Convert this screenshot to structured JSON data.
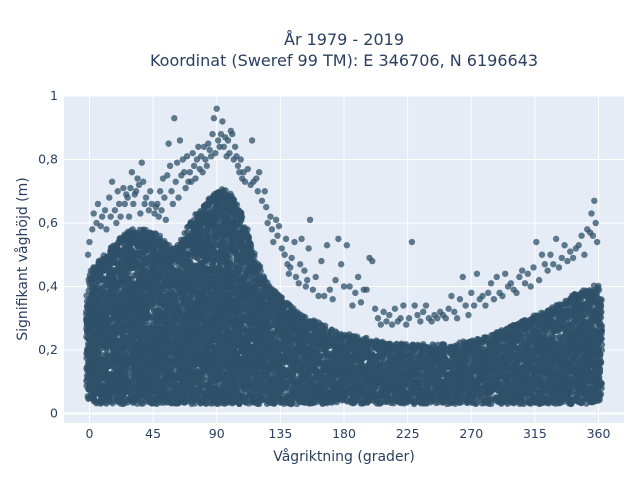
{
  "chart_data": {
    "type": "scatter",
    "title": "År 1979 - 2019",
    "subtitle": "Koordinat (Sweref 99 TM): E 346706, N 6196643",
    "xlabel": "Vågriktning (grader)",
    "ylabel": "Signifikant våghöjd (m)",
    "xlim": [
      -18,
      378
    ],
    "ylim": [
      -0.03,
      1.0
    ],
    "xticks": [
      0,
      45,
      90,
      135,
      180,
      225,
      270,
      315,
      360
    ],
    "yticks": [
      0,
      0.2,
      0.4,
      0.6,
      0.8,
      1
    ],
    "ytick_labels": [
      "0",
      "0,2",
      "0,4",
      "0,6",
      "0,8",
      "1"
    ],
    "grid": true,
    "marker_color": "#2f5068",
    "marker_opacity": 0.75,
    "series": [
      {
        "dense_band": {
          "x": [
            -2,
            0,
            5,
            10,
            15,
            20,
            25,
            30,
            35,
            40,
            45,
            50,
            55,
            60,
            65,
            70,
            75,
            80,
            85,
            90,
            95,
            100,
            105,
            110,
            115,
            120,
            125,
            130,
            135,
            140,
            145,
            150,
            155,
            160,
            165,
            170,
            175,
            180,
            185,
            190,
            195,
            200,
            205,
            210,
            215,
            220,
            225,
            230,
            235,
            240,
            245,
            250,
            255,
            260,
            265,
            270,
            275,
            280,
            285,
            290,
            295,
            300,
            305,
            310,
            315,
            320,
            325,
            330,
            335,
            340,
            345,
            350,
            355,
            360,
            362
          ],
          "y_low": [
            0.05,
            0.04,
            0.03,
            0.03,
            0.03,
            0.03,
            0.03,
            0.03,
            0.03,
            0.03,
            0.03,
            0.03,
            0.03,
            0.03,
            0.03,
            0.03,
            0.03,
            0.03,
            0.03,
            0.03,
            0.03,
            0.03,
            0.03,
            0.03,
            0.03,
            0.03,
            0.03,
            0.03,
            0.03,
            0.03,
            0.03,
            0.03,
            0.03,
            0.03,
            0.03,
            0.03,
            0.03,
            0.03,
            0.03,
            0.03,
            0.03,
            0.03,
            0.03,
            0.03,
            0.03,
            0.03,
            0.03,
            0.03,
            0.03,
            0.03,
            0.03,
            0.03,
            0.03,
            0.03,
            0.03,
            0.03,
            0.03,
            0.03,
            0.03,
            0.03,
            0.03,
            0.03,
            0.03,
            0.03,
            0.03,
            0.03,
            0.03,
            0.03,
            0.03,
            0.03,
            0.03,
            0.03,
            0.03,
            0.04,
            0.05
          ],
          "y_high": [
            0.38,
            0.44,
            0.48,
            0.5,
            0.52,
            0.55,
            0.57,
            0.58,
            0.58,
            0.58,
            0.57,
            0.56,
            0.54,
            0.52,
            0.55,
            0.6,
            0.63,
            0.65,
            0.68,
            0.7,
            0.71,
            0.69,
            0.66,
            0.6,
            0.53,
            0.47,
            0.42,
            0.39,
            0.37,
            0.35,
            0.33,
            0.31,
            0.3,
            0.29,
            0.28,
            0.27,
            0.26,
            0.25,
            0.25,
            0.24,
            0.24,
            0.23,
            0.23,
            0.22,
            0.22,
            0.22,
            0.22,
            0.22,
            0.22,
            0.22,
            0.22,
            0.22,
            0.22,
            0.22,
            0.23,
            0.23,
            0.24,
            0.24,
            0.25,
            0.26,
            0.27,
            0.28,
            0.29,
            0.3,
            0.31,
            0.32,
            0.33,
            0.34,
            0.35,
            0.37,
            0.38,
            0.39,
            0.4,
            0.41,
            0.36
          ]
        },
        "points": [
          [
            2,
            0.58
          ],
          [
            3,
            0.63
          ],
          [
            5,
            0.6
          ],
          [
            6,
            0.66
          ],
          [
            8,
            0.59
          ],
          [
            9,
            0.62
          ],
          [
            11,
            0.64
          ],
          [
            12,
            0.58
          ],
          [
            14,
            0.68
          ],
          [
            15,
            0.62
          ],
          [
            16,
            0.73
          ],
          [
            18,
            0.64
          ],
          [
            19,
            0.6
          ],
          [
            20,
            0.7
          ],
          [
            21,
            0.66
          ],
          [
            22,
            0.62
          ],
          [
            24,
            0.71
          ],
          [
            25,
            0.66
          ],
          [
            26,
            0.69
          ],
          [
            27,
            0.68
          ],
          [
            28,
            0.62
          ],
          [
            29,
            0.71
          ],
          [
            30,
            0.76
          ],
          [
            31,
            0.66
          ],
          [
            32,
            0.69
          ],
          [
            33,
            0.7
          ],
          [
            34,
            0.74
          ],
          [
            35,
            0.72
          ],
          [
            36,
            0.63
          ],
          [
            37,
            0.79
          ],
          [
            38,
            0.73
          ],
          [
            39,
            0.66
          ],
          [
            40,
            0.68
          ],
          [
            42,
            0.64
          ],
          [
            43,
            0.7
          ],
          [
            44,
            0.66
          ],
          [
            46,
            0.63
          ],
          [
            47,
            0.65
          ],
          [
            48,
            0.66
          ],
          [
            49,
            0.62
          ],
          [
            50,
            0.7
          ],
          [
            51,
            0.64
          ],
          [
            52,
            0.74
          ],
          [
            53,
            0.68
          ],
          [
            54,
            0.61
          ],
          [
            55,
            0.75
          ],
          [
            56,
            0.85
          ],
          [
            57,
            0.78
          ],
          [
            58,
            0.7
          ],
          [
            59,
            0.66
          ],
          [
            60,
            0.93
          ],
          [
            61,
            0.73
          ],
          [
            62,
            0.79
          ],
          [
            63,
            0.68
          ],
          [
            64,
            0.86
          ],
          [
            65,
            0.75
          ],
          [
            66,
            0.8
          ],
          [
            67,
            0.76
          ],
          [
            68,
            0.71
          ],
          [
            69,
            0.81
          ],
          [
            70,
            0.73
          ],
          [
            71,
            0.76
          ],
          [
            72,
            0.73
          ],
          [
            73,
            0.82
          ],
          [
            74,
            0.78
          ],
          [
            75,
            0.74
          ],
          [
            76,
            0.8
          ],
          [
            77,
            0.84
          ],
          [
            78,
            0.77
          ],
          [
            79,
            0.81
          ],
          [
            80,
            0.76
          ],
          [
            81,
            0.84
          ],
          [
            82,
            0.8
          ],
          [
            83,
            0.78
          ],
          [
            84,
            0.85
          ],
          [
            85,
            0.83
          ],
          [
            86,
            0.81
          ],
          [
            87,
            0.88
          ],
          [
            88,
            0.93
          ],
          [
            89,
            0.82
          ],
          [
            90,
            0.96
          ],
          [
            91,
            0.86
          ],
          [
            92,
            0.84
          ],
          [
            93,
            0.88
          ],
          [
            94,
            0.92
          ],
          [
            95,
            0.84
          ],
          [
            96,
            0.87
          ],
          [
            97,
            0.81
          ],
          [
            98,
            0.86
          ],
          [
            99,
            0.82
          ],
          [
            100,
            0.89
          ],
          [
            101,
            0.88
          ],
          [
            102,
            0.8
          ],
          [
            103,
            0.84
          ],
          [
            104,
            0.81
          ],
          [
            105,
            0.78
          ],
          [
            106,
            0.76
          ],
          [
            107,
            0.8
          ],
          [
            108,
            0.74
          ],
          [
            109,
            0.76
          ],
          [
            110,
            0.73
          ],
          [
            112,
            0.77
          ],
          [
            114,
            0.72
          ],
          [
            115,
            0.86
          ],
          [
            116,
            0.73
          ],
          [
            118,
            0.74
          ],
          [
            119,
            0.7
          ],
          [
            120,
            0.76
          ],
          [
            122,
            0.67
          ],
          [
            124,
            0.7
          ],
          [
            125,
            0.65
          ],
          [
            126,
            0.6
          ],
          [
            128,
            0.62
          ],
          [
            129,
            0.58
          ],
          [
            130,
            0.54
          ],
          [
            132,
            0.61
          ],
          [
            133,
            0.56
          ],
          [
            134,
            0.59
          ],
          [
            136,
            0.52
          ],
          [
            138,
            0.5
          ],
          [
            139,
            0.55
          ],
          [
            140,
            0.47
          ],
          [
            141,
            0.44
          ],
          [
            142,
            0.46
          ],
          [
            143,
            0.49
          ],
          [
            145,
            0.54
          ],
          [
            146,
            0.43
          ],
          [
            148,
            0.41
          ],
          [
            149,
            0.47
          ],
          [
            150,
            0.55
          ],
          [
            152,
            0.45
          ],
          [
            153,
            0.4
          ],
          [
            154,
            0.42
          ],
          [
            155,
            0.52
          ],
          [
            156,
            0.61
          ],
          [
            158,
            0.39
          ],
          [
            160,
            0.43
          ],
          [
            162,
            0.37
          ],
          [
            164,
            0.48
          ],
          [
            166,
            0.37
          ],
          [
            168,
            0.53
          ],
          [
            170,
            0.39
          ],
          [
            172,
            0.36
          ],
          [
            174,
            0.42
          ],
          [
            176,
            0.55
          ],
          [
            178,
            0.47
          ],
          [
            180,
            0.4
          ],
          [
            182,
            0.53
          ],
          [
            184,
            0.4
          ],
          [
            186,
            0.34
          ],
          [
            188,
            0.38
          ],
          [
            190,
            0.43
          ],
          [
            192,
            0.35
          ],
          [
            194,
            0.39
          ],
          [
            196,
            0.39
          ],
          [
            198,
            0.49
          ],
          [
            200,
            0.48
          ],
          [
            202,
            0.33
          ],
          [
            204,
            0.3
          ],
          [
            206,
            0.28
          ],
          [
            208,
            0.32
          ],
          [
            210,
            0.29
          ],
          [
            212,
            0.31
          ],
          [
            214,
            0.28
          ],
          [
            216,
            0.33
          ],
          [
            218,
            0.29
          ],
          [
            220,
            0.3
          ],
          [
            222,
            0.34
          ],
          [
            224,
            0.28
          ],
          [
            226,
            0.3
          ],
          [
            228,
            0.54
          ],
          [
            230,
            0.34
          ],
          [
            232,
            0.31
          ],
          [
            234,
            0.29
          ],
          [
            236,
            0.32
          ],
          [
            238,
            0.34
          ],
          [
            240,
            0.3
          ],
          [
            242,
            0.29
          ],
          [
            244,
            0.31
          ],
          [
            246,
            0.3
          ],
          [
            248,
            0.32
          ],
          [
            250,
            0.31
          ],
          [
            252,
            0.3
          ],
          [
            254,
            0.33
          ],
          [
            256,
            0.37
          ],
          [
            258,
            0.32
          ],
          [
            260,
            0.3
          ],
          [
            262,
            0.36
          ],
          [
            264,
            0.43
          ],
          [
            266,
            0.34
          ],
          [
            268,
            0.31
          ],
          [
            270,
            0.38
          ],
          [
            272,
            0.34
          ],
          [
            274,
            0.44
          ],
          [
            276,
            0.36
          ],
          [
            278,
            0.37
          ],
          [
            280,
            0.34
          ],
          [
            282,
            0.38
          ],
          [
            284,
            0.41
          ],
          [
            286,
            0.36
          ],
          [
            288,
            0.43
          ],
          [
            290,
            0.38
          ],
          [
            292,
            0.37
          ],
          [
            294,
            0.44
          ],
          [
            296,
            0.4
          ],
          [
            298,
            0.41
          ],
          [
            300,
            0.39
          ],
          [
            302,
            0.38
          ],
          [
            304,
            0.43
          ],
          [
            306,
            0.45
          ],
          [
            308,
            0.41
          ],
          [
            310,
            0.44
          ],
          [
            312,
            0.4
          ],
          [
            314,
            0.46
          ],
          [
            316,
            0.54
          ],
          [
            318,
            0.42
          ],
          [
            320,
            0.5
          ],
          [
            322,
            0.47
          ],
          [
            324,
            0.45
          ],
          [
            326,
            0.5
          ],
          [
            328,
            0.47
          ],
          [
            330,
            0.55
          ],
          [
            332,
            0.46
          ],
          [
            334,
            0.49
          ],
          [
            336,
            0.53
          ],
          [
            338,
            0.48
          ],
          [
            340,
            0.51
          ],
          [
            342,
            0.49
          ],
          [
            344,
            0.52
          ],
          [
            346,
            0.53
          ],
          [
            348,
            0.56
          ],
          [
            350,
            0.5
          ],
          [
            352,
            0.58
          ],
          [
            354,
            0.57
          ],
          [
            355,
            0.63
          ],
          [
            356,
            0.56
          ],
          [
            357,
            0.67
          ],
          [
            358,
            0.6
          ],
          [
            359,
            0.54
          ],
          [
            1,
            0.45
          ],
          [
            -1,
            0.5
          ],
          [
            0,
            0.54
          ]
        ]
      }
    ]
  }
}
